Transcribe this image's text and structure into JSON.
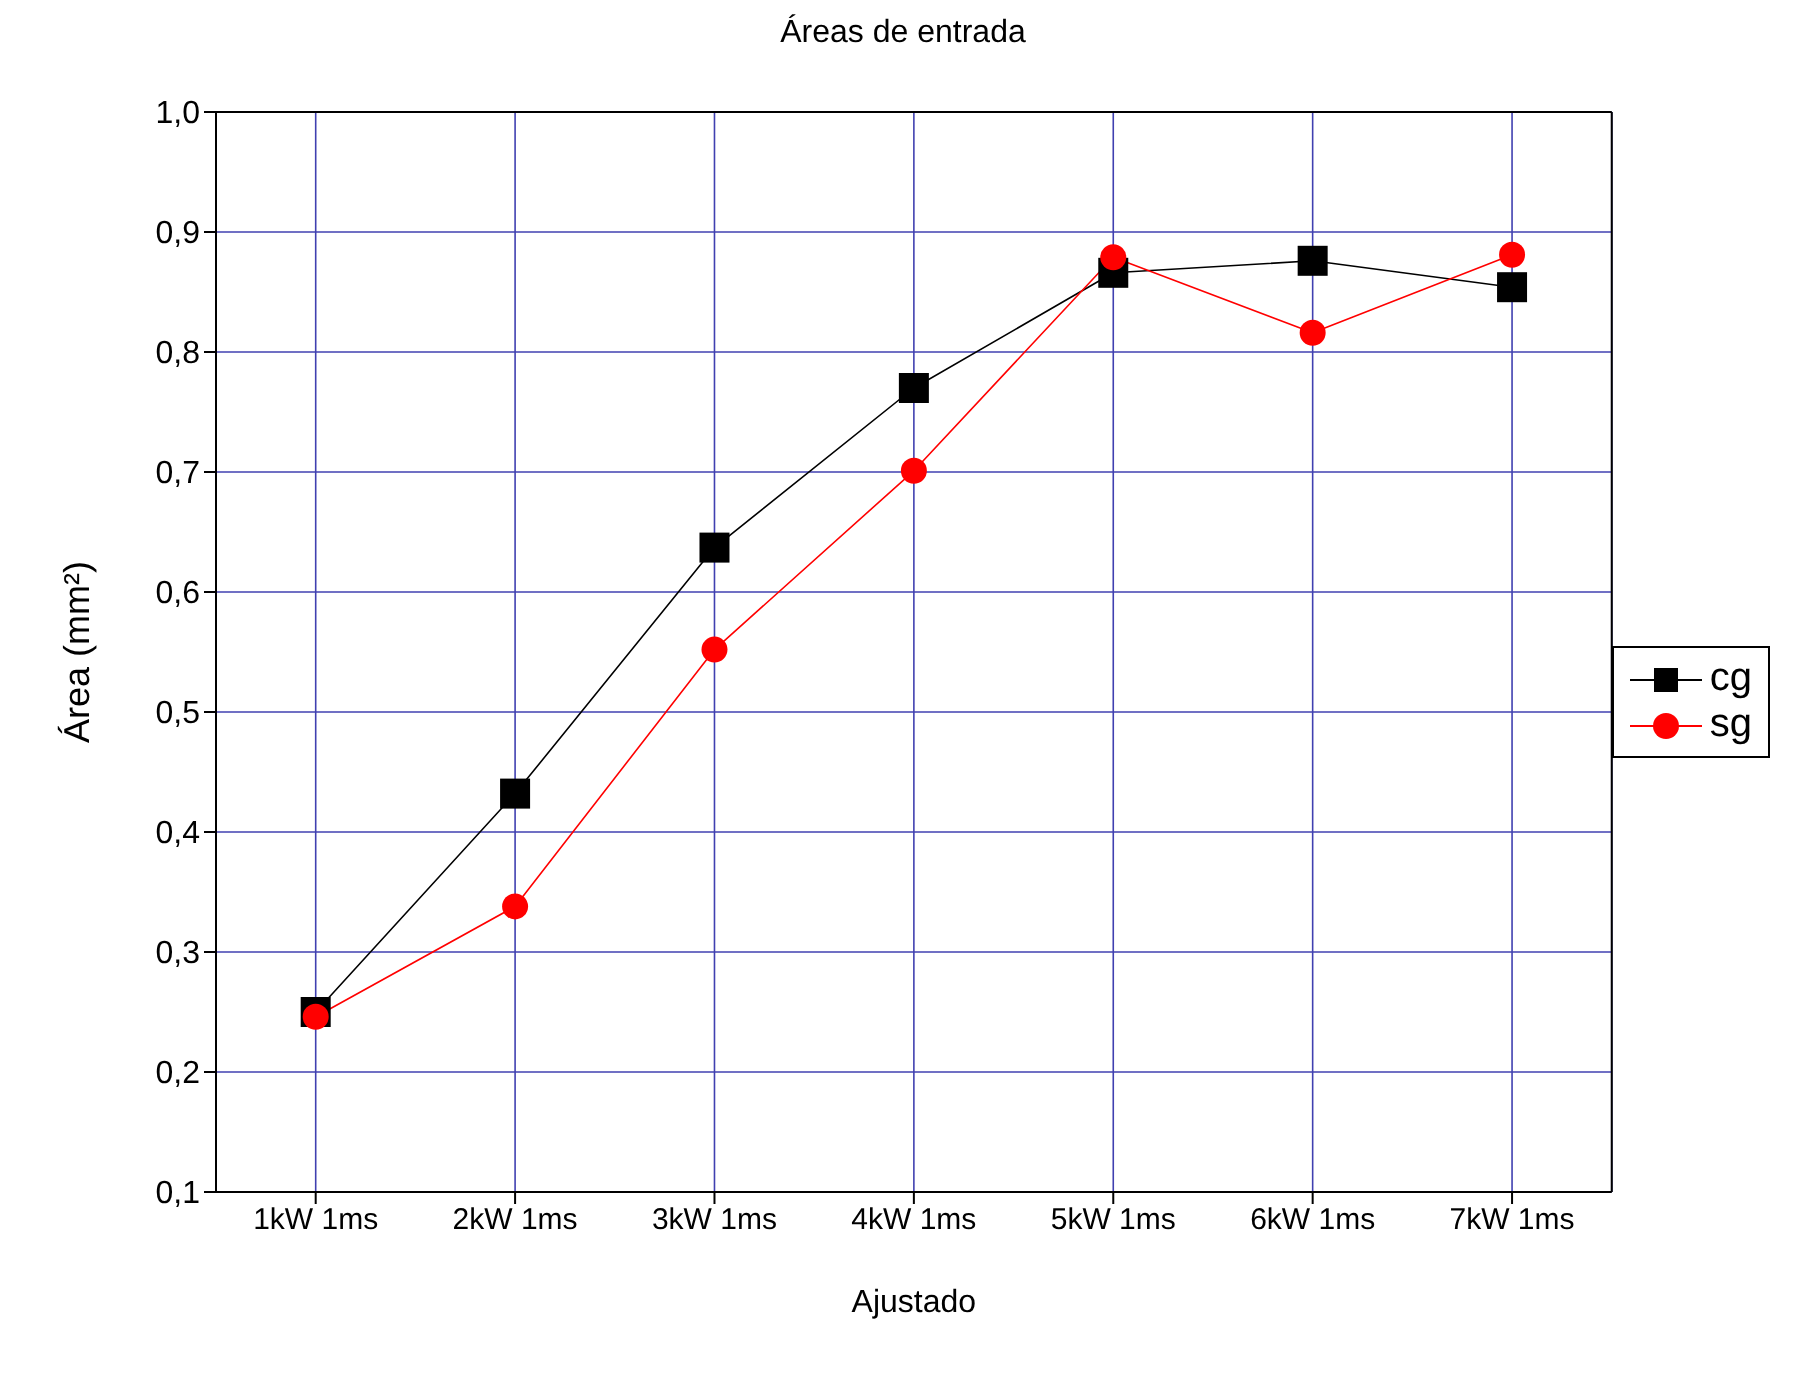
{
  "chart_data": {
    "type": "line",
    "title": "Áreas de entrada",
    "xlabel": "Ajustado",
    "ylabel": "Área (mm²)",
    "categories": [
      "1kW 1ms",
      "2kW 1ms",
      "3kW 1ms",
      "4kW 1ms",
      "5kW 1ms",
      "6kW 1ms",
      "7kW 1ms"
    ],
    "series": [
      {
        "name": "cg",
        "color": "#000000",
        "marker": "square",
        "values": [
          0.25,
          0.432,
          0.637,
          0.77,
          0.866,
          0.876,
          0.854
        ]
      },
      {
        "name": "sg",
        "color": "#ff0000",
        "marker": "circle",
        "values": [
          0.246,
          0.338,
          0.552,
          0.701,
          0.879,
          0.816,
          0.881
        ]
      }
    ],
    "ylim": [
      0.1,
      1.0
    ],
    "yticks": [
      {
        "value": 0.1,
        "label": "0,1"
      },
      {
        "value": 0.2,
        "label": "0,2"
      },
      {
        "value": 0.3,
        "label": "0,3"
      },
      {
        "value": 0.4,
        "label": "0,4"
      },
      {
        "value": 0.5,
        "label": "0,5"
      },
      {
        "value": 0.6,
        "label": "0,6"
      },
      {
        "value": 0.7,
        "label": "0,7"
      },
      {
        "value": 0.8,
        "label": "0,8"
      },
      {
        "value": 0.9,
        "label": "0,9"
      },
      {
        "value": 1.0,
        "label": "1,0"
      }
    ],
    "grid": true,
    "legend": "right",
    "line_style": "solid"
  }
}
